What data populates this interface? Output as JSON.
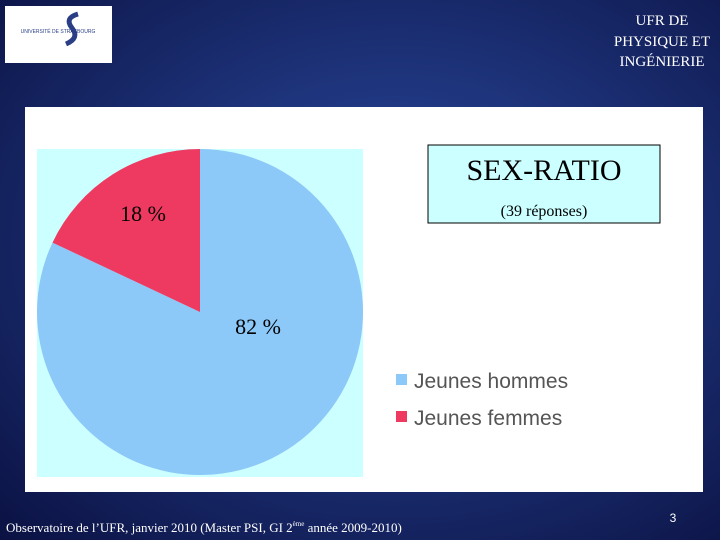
{
  "header": {
    "logo": "UNIVERSITÉ DE STRASBOURG",
    "lines": [
      "UFR DE",
      "PHYSIQUE ET",
      "INGÉNIERIE"
    ]
  },
  "chart_data": {
    "type": "pie",
    "title": "SEX-RATIO",
    "subtitle": "(39 réponses)",
    "categories": [
      "Jeunes hommes",
      "Jeunes femmes"
    ],
    "values": [
      82,
      18
    ],
    "value_labels": [
      "82 %",
      "18 %"
    ],
    "colors": [
      "#8cc8f8",
      "#ee3a60"
    ]
  },
  "footer": {
    "text": [
      "Observatoire de l’UFR, janvier 2010 (Master PSI, GI 2",
      "ème",
      " année 2009-2010)"
    ],
    "page": 3
  }
}
